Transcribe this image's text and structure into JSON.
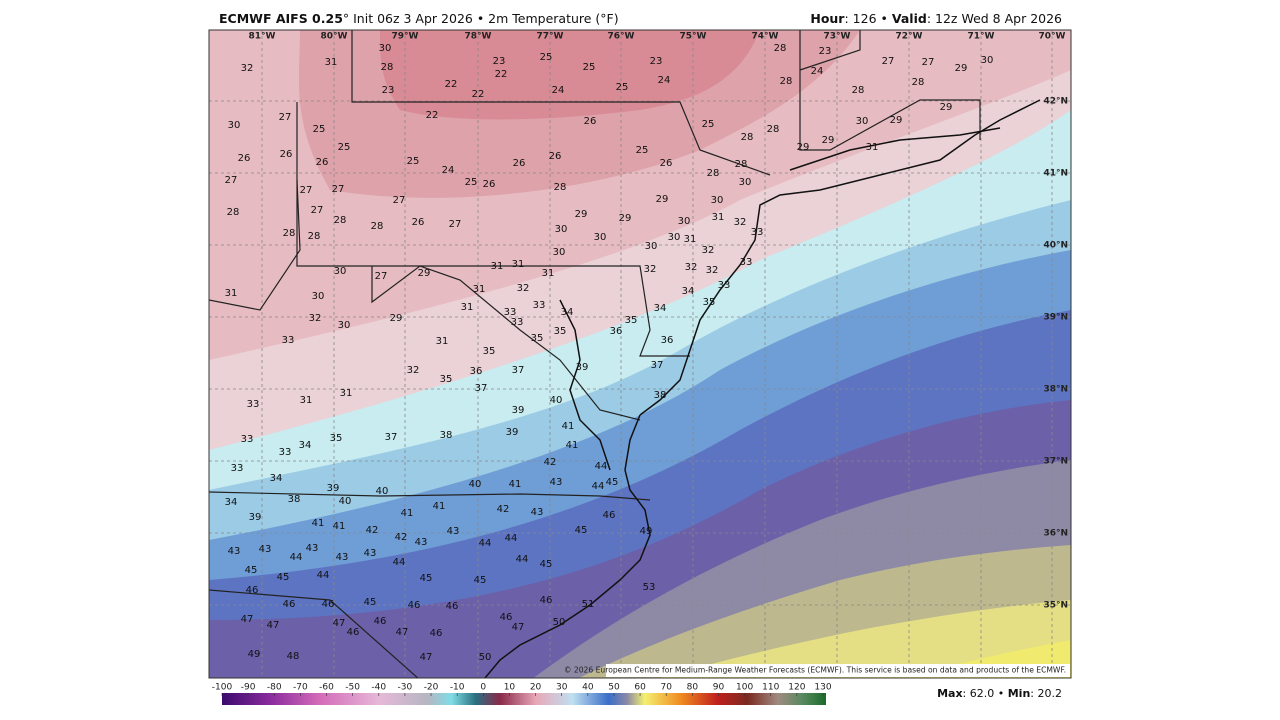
{
  "header": {
    "model": "ECMWF AIFS 0.25",
    "init": "° Init 06z 3 Apr 2026 • 2m Temperature (°F)",
    "hour_label": "Hour",
    "hour": ": 126 • ",
    "valid_label": "Valid",
    "valid": ": 12z Wed 8 Apr 2026"
  },
  "map": {
    "longitudes": [
      "81°W",
      "80°W",
      "79°W",
      "78°W",
      "77°W",
      "76°W",
      "75°W",
      "74°W",
      "73°W",
      "72°W",
      "71°W",
      "70°W"
    ],
    "latitudes": [
      "42°N",
      "41°N",
      "40°N",
      "39°N",
      "38°N",
      "37°N",
      "36°N",
      "35°N"
    ],
    "stations": [
      32,
      31,
      30,
      28,
      23,
      22,
      22,
      23,
      22,
      25,
      25,
      24,
      23,
      24,
      25,
      28,
      23,
      24,
      28,
      27,
      27,
      29,
      30,
      28,
      28,
      30,
      27,
      25,
      22,
      26,
      25,
      28,
      28,
      30,
      29,
      29,
      26,
      26,
      26,
      25,
      25,
      24,
      26,
      26,
      25,
      26,
      28,
      29,
      29,
      31,
      27,
      27,
      27,
      25,
      26,
      28,
      28,
      30,
      28,
      27,
      27,
      28,
      26,
      27,
      29,
      29,
      29,
      30,
      28,
      28,
      28,
      30,
      30,
      30,
      31,
      32,
      30,
      30,
      31,
      33,
      32,
      30,
      30,
      27,
      29,
      31,
      31,
      31,
      32,
      32,
      32,
      33,
      31,
      30,
      31,
      32,
      33,
      34,
      35,
      32,
      30,
      29,
      31,
      33,
      33,
      33,
      34,
      35,
      36,
      34,
      33,
      31,
      35,
      35,
      35,
      36,
      32,
      35,
      36,
      37,
      37,
      39,
      37,
      33,
      31,
      31,
      40,
      39,
      38,
      33,
      34,
      33,
      35,
      37,
      38,
      39,
      41,
      41,
      42,
      44,
      33,
      34,
      39,
      40,
      40,
      41,
      43,
      44,
      45,
      34,
      38,
      40,
      39,
      41,
      41,
      41,
      41,
      42,
      43,
      42,
      42,
      43,
      43,
      44,
      44,
      45,
      46,
      49,
      43,
      43,
      44,
      43,
      43,
      43,
      44,
      44,
      45,
      45,
      45,
      44,
      45,
      45,
      46,
      53,
      46,
      46,
      45,
      46,
      46,
      46,
      51,
      47,
      47,
      47,
      46,
      46,
      47,
      46,
      46,
      47,
      50,
      49,
      48,
      47,
      50
    ],
    "credit": "© 2026 European Centre for Medium-Range Weather Forecasts (ECMWF). This service is based on data and products of the ECMWF."
  },
  "colorbar": {
    "ticks": [
      -100,
      -90,
      -80,
      -70,
      -60,
      -50,
      -40,
      -30,
      -20,
      -10,
      0,
      10,
      20,
      30,
      40,
      50,
      60,
      70,
      80,
      90,
      100,
      110,
      120,
      130
    ]
  },
  "footer": {
    "max_label": "Max",
    "max": ": 62.0 • ",
    "min_label": "Min",
    "min": ": 20.2"
  }
}
